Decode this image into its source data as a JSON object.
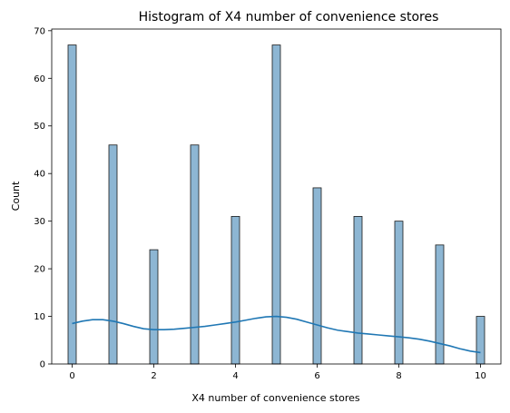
{
  "chart_data": {
    "type": "bar",
    "title": "Histogram of X4 number of convenience stores",
    "xlabel": "X4 number of convenience stores",
    "ylabel": "Count",
    "xlim": [
      -0.5,
      10.5
    ],
    "ylim": [
      0,
      70.35
    ],
    "xticks": [
      0,
      2,
      4,
      6,
      8,
      10
    ],
    "yticks": [
      0,
      10,
      20,
      30,
      40,
      50,
      60,
      70
    ],
    "bar_width": 0.2,
    "bar_color": "#8db6d3",
    "bar_edge_color": "#1a1a1a",
    "line_color": "#1f77b4",
    "grid": false,
    "legend": "none",
    "x": [
      0,
      1,
      2,
      3,
      4,
      5,
      6,
      7,
      8,
      9,
      10
    ],
    "values": [
      67,
      46,
      24,
      46,
      31,
      67,
      37,
      31,
      30,
      25,
      10
    ],
    "kde": {
      "x": [
        0,
        0.25,
        0.5,
        0.75,
        1,
        1.25,
        1.5,
        1.75,
        2,
        2.25,
        2.5,
        2.75,
        3,
        3.25,
        3.5,
        3.75,
        4,
        4.25,
        4.5,
        4.75,
        5,
        5.25,
        5.5,
        5.75,
        6,
        6.25,
        6.5,
        6.75,
        7,
        7.25,
        7.5,
        7.75,
        8,
        8.25,
        8.5,
        8.75,
        9,
        9.25,
        9.5,
        9.75,
        10
      ],
      "y": [
        8.5,
        9.0,
        9.3,
        9.3,
        9.0,
        8.5,
        7.9,
        7.4,
        7.2,
        7.2,
        7.3,
        7.5,
        7.7,
        7.9,
        8.2,
        8.5,
        8.8,
        9.2,
        9.6,
        9.9,
        10.0,
        9.8,
        9.4,
        8.8,
        8.2,
        7.6,
        7.1,
        6.8,
        6.5,
        6.3,
        6.1,
        5.9,
        5.7,
        5.5,
        5.2,
        4.8,
        4.3,
        3.8,
        3.2,
        2.7,
        2.4
      ]
    }
  }
}
